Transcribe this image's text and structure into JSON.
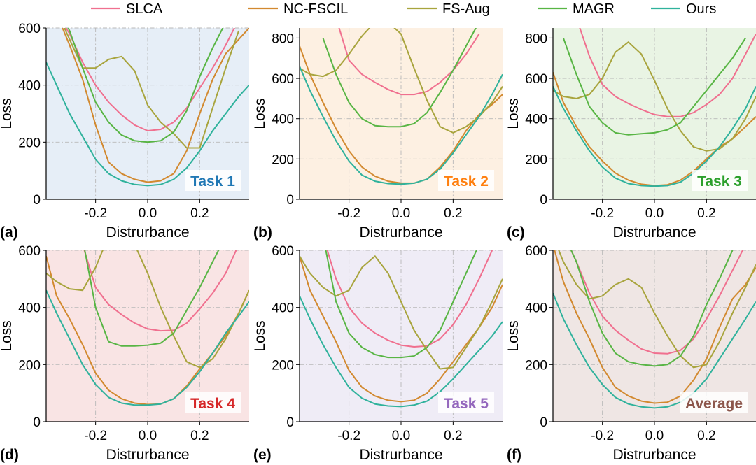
{
  "colors": {
    "SLCA": "#f0708f",
    "NC-FSCIL": "#d2892f",
    "FS-Aug": "#a8a43d",
    "MAGR": "#58b544",
    "Ours": "#2fb29c"
  },
  "legend": [
    "SLCA",
    "NC-FSCIL",
    "FS-Aug",
    "MAGR",
    "Ours"
  ],
  "chart_data": [
    {
      "type": "line",
      "panel": "(a)",
      "task_label": "Task 1",
      "task_color": "#1f77b4",
      "bg": "#e6eef7",
      "xlabel": "Distrurbance",
      "ylabel": "Loss",
      "xlim": [
        -0.39,
        0.39
      ],
      "ylim": [
        0,
        600
      ],
      "xticks": [
        "-0.2",
        "0.0",
        "0.2"
      ],
      "yticks": [
        "0",
        "200",
        "400",
        "600"
      ],
      "x": [
        -0.39,
        -0.35,
        -0.3,
        -0.25,
        -0.2,
        -0.15,
        -0.1,
        -0.05,
        0.0,
        0.05,
        0.1,
        0.15,
        0.2,
        0.25,
        0.3,
        0.35,
        0.39
      ],
      "series": [
        {
          "name": "SLCA",
          "values": [
            null,
            650,
            580,
            480,
            400,
            340,
            295,
            260,
            240,
            245,
            270,
            320,
            390,
            460,
            540,
            630,
            null
          ]
        },
        {
          "name": "NC-FSCIL",
          "values": [
            null,
            650,
            540,
            420,
            260,
            130,
            90,
            70,
            60,
            65,
            90,
            170,
            300,
            420,
            510,
            560,
            600
          ]
        },
        {
          "name": "FS-Aug",
          "values": [
            null,
            660,
            560,
            460,
            460,
            490,
            500,
            450,
            330,
            270,
            230,
            180,
            180,
            320,
            460,
            590,
            null
          ]
        },
        {
          "name": "MAGR",
          "values": [
            null,
            680,
            590,
            460,
            340,
            270,
            225,
            205,
            200,
            205,
            235,
            310,
            430,
            530,
            620,
            null,
            null
          ]
        },
        {
          "name": "Ours",
          "values": [
            480,
            400,
            300,
            220,
            140,
            90,
            65,
            52,
            48,
            52,
            70,
            110,
            170,
            240,
            300,
            360,
            400
          ]
        }
      ]
    },
    {
      "type": "line",
      "panel": "(b)",
      "task_label": "Task 2",
      "task_color": "#ff7f0e",
      "bg": "#fdf0e2",
      "xlabel": "Distrurbance",
      "ylabel": "Loss",
      "xlim": [
        -0.39,
        0.39
      ],
      "ylim": [
        0,
        850
      ],
      "xticks": [
        "-0.2",
        "0.0",
        "0.2"
      ],
      "yticks": [
        "0",
        "200",
        "400",
        "600",
        "800"
      ],
      "x": [
        -0.39,
        -0.35,
        -0.3,
        -0.25,
        -0.2,
        -0.15,
        -0.1,
        -0.05,
        0.0,
        0.05,
        0.1,
        0.15,
        0.2,
        0.25,
        0.3,
        0.35,
        0.39
      ],
      "series": [
        {
          "name": "SLCA",
          "values": [
            null,
            null,
            null,
            900,
            690,
            620,
            580,
            545,
            520,
            520,
            535,
            580,
            640,
            720,
            820,
            null,
            null
          ]
        },
        {
          "name": "NC-FSCIL",
          "values": [
            760,
            620,
            480,
            350,
            240,
            160,
            115,
            90,
            80,
            80,
            100,
            160,
            240,
            340,
            420,
            470,
            520
          ]
        },
        {
          "name": "FS-Aug",
          "values": [
            650,
            620,
            610,
            640,
            720,
            810,
            880,
            880,
            820,
            650,
            490,
            360,
            330,
            360,
            410,
            480,
            560
          ]
        },
        {
          "name": "MAGR",
          "values": [
            null,
            null,
            800,
            620,
            480,
            400,
            365,
            360,
            360,
            375,
            430,
            530,
            640,
            760,
            880,
            null,
            null
          ]
        },
        {
          "name": "Ours",
          "values": [
            660,
            540,
            410,
            290,
            190,
            120,
            90,
            78,
            75,
            80,
            100,
            150,
            230,
            320,
            410,
            520,
            620
          ]
        }
      ]
    },
    {
      "type": "line",
      "panel": "(c)",
      "task_label": "Task 3",
      "task_color": "#2ca02c",
      "bg": "#e9f4e4",
      "xlabel": "Distrurbance",
      "ylabel": "Loss",
      "xlim": [
        -0.39,
        0.39
      ],
      "ylim": [
        0,
        850
      ],
      "xticks": [
        "-0.2",
        "0.0",
        "0.2"
      ],
      "yticks": [
        "0",
        "200",
        "400",
        "600",
        "800"
      ],
      "x": [
        -0.39,
        -0.35,
        -0.3,
        -0.25,
        -0.2,
        -0.15,
        -0.1,
        -0.05,
        0.0,
        0.05,
        0.1,
        0.15,
        0.2,
        0.25,
        0.3,
        0.35,
        0.39
      ],
      "series": [
        {
          "name": "SLCA",
          "values": [
            null,
            null,
            900,
            710,
            570,
            510,
            475,
            445,
            420,
            410,
            410,
            430,
            470,
            520,
            600,
            720,
            820
          ]
        },
        {
          "name": "NC-FSCIL",
          "values": [
            630,
            480,
            360,
            260,
            190,
            130,
            95,
            75,
            68,
            72,
            95,
            140,
            200,
            260,
            300,
            360,
            410
          ]
        },
        {
          "name": "FS-Aug",
          "values": [
            540,
            510,
            500,
            520,
            600,
            730,
            780,
            720,
            590,
            450,
            340,
            260,
            240,
            250,
            300,
            400,
            510
          ]
        },
        {
          "name": "MAGR",
          "values": [
            null,
            800,
            620,
            460,
            380,
            330,
            320,
            325,
            330,
            345,
            380,
            460,
            540,
            620,
            700,
            800,
            null
          ]
        },
        {
          "name": "Ours",
          "values": [
            560,
            450,
            340,
            240,
            160,
            105,
            78,
            68,
            65,
            68,
            85,
            130,
            190,
            260,
            350,
            450,
            560
          ]
        }
      ]
    },
    {
      "type": "line",
      "panel": "(d)",
      "task_label": "Task 4",
      "task_color": "#d62728",
      "bg": "#f9e4e4",
      "xlabel": "Distrurbance",
      "ylabel": "Loss",
      "xlim": [
        -0.39,
        0.39
      ],
      "ylim": [
        0,
        600
      ],
      "xticks": [
        "-0.2",
        "0.0",
        "0.2"
      ],
      "yticks": [
        "0",
        "200",
        "400",
        "600"
      ],
      "x": [
        -0.39,
        -0.35,
        -0.3,
        -0.25,
        -0.2,
        -0.15,
        -0.1,
        -0.05,
        0.0,
        0.05,
        0.1,
        0.15,
        0.2,
        0.25,
        0.3,
        0.35,
        0.39
      ],
      "series": [
        {
          "name": "SLCA",
          "values": [
            null,
            null,
            null,
            620,
            470,
            410,
            375,
            345,
            325,
            318,
            320,
            345,
            395,
            450,
            520,
            620,
            null
          ]
        },
        {
          "name": "NC-FSCIL",
          "values": [
            580,
            440,
            360,
            270,
            170,
            110,
            80,
            65,
            60,
            62,
            80,
            125,
            185,
            240,
            300,
            380,
            460
          ]
        },
        {
          "name": "FS-Aug",
          "values": [
            520,
            490,
            465,
            460,
            540,
            650,
            680,
            620,
            520,
            400,
            300,
            210,
            190,
            220,
            290,
            380,
            460
          ]
        },
        {
          "name": "MAGR",
          "values": [
            null,
            null,
            null,
            640,
            400,
            280,
            265,
            265,
            268,
            275,
            310,
            390,
            470,
            560,
            650,
            null,
            null
          ]
        },
        {
          "name": "Ours",
          "values": [
            460,
            380,
            290,
            200,
            130,
            85,
            65,
            58,
            58,
            62,
            80,
            120,
            175,
            240,
            310,
            370,
            420
          ]
        }
      ]
    },
    {
      "type": "line",
      "panel": "(e)",
      "task_label": "Task 5",
      "task_color": "#9467bd",
      "bg": "#efecf6",
      "xlabel": "Distrurbance",
      "ylabel": "Loss",
      "xlim": [
        -0.39,
        0.39
      ],
      "ylim": [
        0,
        600
      ],
      "xticks": [
        "-0.2",
        "0.0",
        "0.2"
      ],
      "yticks": [
        "0",
        "200",
        "400",
        "600"
      ],
      "x": [
        -0.39,
        -0.35,
        -0.3,
        -0.25,
        -0.2,
        -0.15,
        -0.1,
        -0.05,
        0.0,
        0.05,
        0.1,
        0.15,
        0.2,
        0.25,
        0.3,
        0.35,
        0.39
      ],
      "series": [
        {
          "name": "SLCA",
          "values": [
            null,
            null,
            650,
            500,
            400,
            345,
            310,
            285,
            268,
            262,
            265,
            290,
            340,
            410,
            500,
            600,
            null
          ]
        },
        {
          "name": "NC-FSCIL",
          "values": [
            580,
            460,
            370,
            280,
            180,
            120,
            90,
            75,
            70,
            75,
            100,
            150,
            210,
            270,
            330,
            400,
            480
          ]
        },
        {
          "name": "FS-Aug",
          "values": [
            580,
            520,
            470,
            440,
            460,
            540,
            580,
            520,
            420,
            320,
            250,
            185,
            190,
            260,
            330,
            420,
            500
          ]
        },
        {
          "name": "MAGR",
          "values": [
            null,
            null,
            650,
            420,
            310,
            260,
            235,
            225,
            225,
            230,
            260,
            320,
            420,
            520,
            620,
            null,
            null
          ]
        },
        {
          "name": "Ours",
          "values": [
            440,
            360,
            270,
            190,
            120,
            82,
            62,
            55,
            53,
            58,
            72,
            105,
            150,
            200,
            250,
            300,
            350
          ]
        }
      ]
    },
    {
      "type": "line",
      "panel": "(f)",
      "task_label": "Average",
      "task_color": "#8c564b",
      "bg": "#efe6e4",
      "xlabel": "Distrurbance",
      "ylabel": "Loss",
      "xlim": [
        -0.39,
        0.39
      ],
      "ylim": [
        0,
        600
      ],
      "xticks": [
        "-0.2",
        "0.0",
        "0.2"
      ],
      "yticks": [
        "0",
        "200",
        "400",
        "600"
      ],
      "x": [
        -0.39,
        -0.35,
        -0.3,
        -0.25,
        -0.2,
        -0.15,
        -0.1,
        -0.05,
        0.0,
        0.05,
        0.1,
        0.15,
        0.2,
        0.25,
        0.3,
        0.35,
        0.39
      ],
      "series": [
        {
          "name": "SLCA",
          "values": [
            null,
            660,
            560,
            450,
            370,
            320,
            285,
            255,
            240,
            238,
            250,
            290,
            360,
            440,
            530,
            620,
            null
          ]
        },
        {
          "name": "NC-FSCIL",
          "values": [
            620,
            490,
            380,
            290,
            190,
            120,
            90,
            72,
            65,
            68,
            90,
            145,
            220,
            330,
            430,
            480,
            540
          ]
        },
        {
          "name": "FS-Aug",
          "values": [
            650,
            560,
            480,
            430,
            440,
            480,
            500,
            470,
            380,
            300,
            230,
            190,
            200,
            280,
            380,
            470,
            550
          ]
        },
        {
          "name": "MAGR",
          "values": [
            null,
            660,
            560,
            420,
            310,
            240,
            210,
            200,
            195,
            200,
            230,
            300,
            410,
            500,
            600,
            null,
            null
          ]
        },
        {
          "name": "Ours",
          "values": [
            450,
            360,
            270,
            190,
            130,
            85,
            62,
            52,
            48,
            52,
            68,
            100,
            150,
            220,
            290,
            360,
            420
          ]
        }
      ]
    }
  ]
}
